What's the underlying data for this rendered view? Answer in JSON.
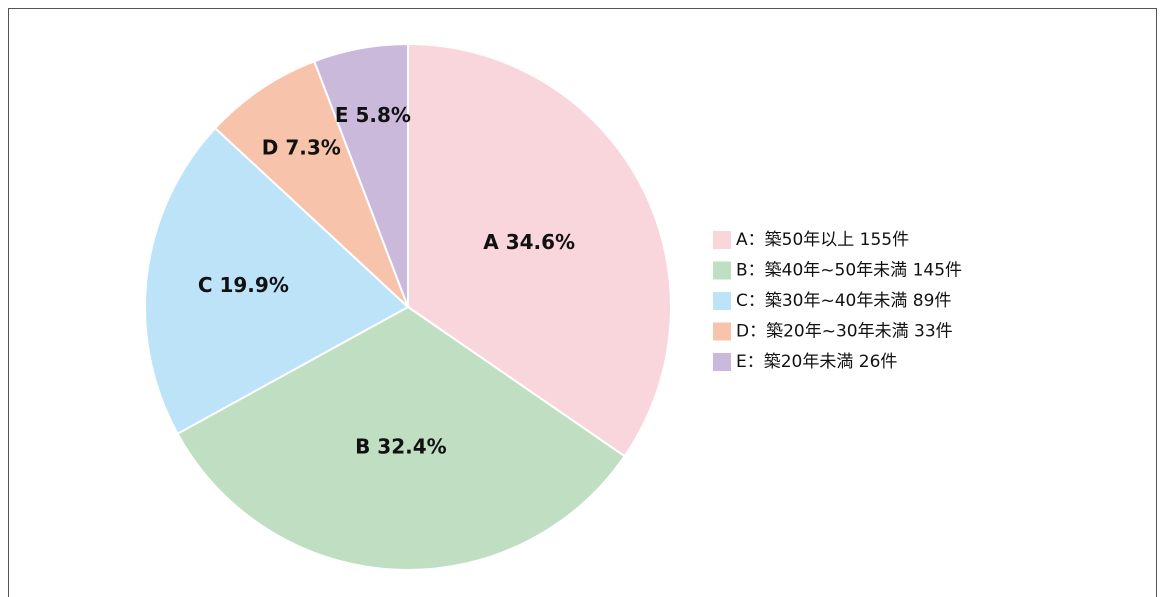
{
  "chart_data": {
    "type": "pie",
    "categories": [
      "A：築50年以上 155件",
      "B：築40年~50年未満 145件",
      "C：築30年~40年未満 89件",
      "D：築20年~30年未満 33件",
      "E：築20年未満 26件"
    ],
    "values": [
      34.6,
      32.4,
      19.9,
      7.3,
      5.8
    ],
    "value_labels": [
      "A 34.6%",
      "B 32.4%",
      "C 19.9%",
      "D 7.3%",
      "E 5.8%"
    ],
    "colors": [
      "#f9d5dc",
      "#c0dfc2",
      "#bce3f7",
      "#f7c4ab",
      "#cbb9dc"
    ],
    "legend": "right"
  }
}
